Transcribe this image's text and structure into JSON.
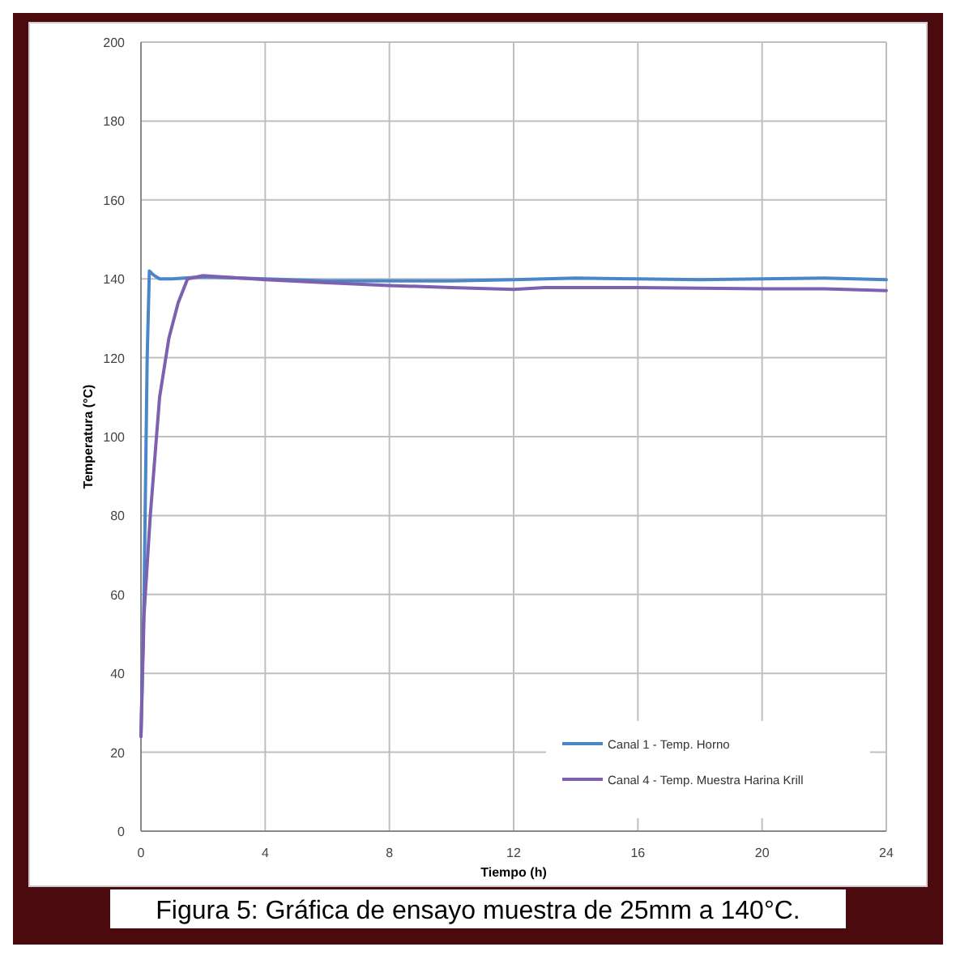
{
  "chart_data": {
    "type": "line",
    "xlabel": "Tiempo (h)",
    "ylabel": "Temperatura (°C)",
    "xlim": [
      0,
      24
    ],
    "xticks": [
      0,
      4,
      8,
      12,
      16,
      20,
      24
    ],
    "ylim": [
      0,
      200
    ],
    "yticks": [
      0,
      20,
      40,
      60,
      80,
      100,
      120,
      140,
      160,
      180,
      200
    ],
    "grid": true,
    "legend": "bottom right",
    "line_style": "solid",
    "annotations": [
      "Figura 5: Gráfica de ensayo muestra de 25mm a 140°C."
    ],
    "series": [
      {
        "name": "Canal 1 - Temp. Horno",
        "color": "#4a86c8",
        "x": [
          0,
          0.1,
          0.2,
          0.27,
          0.4,
          0.6,
          1,
          2,
          4,
          6,
          8,
          10,
          12,
          14,
          16,
          18,
          20,
          22,
          24
        ],
        "values": [
          24,
          60,
          120,
          142,
          141,
          140,
          140,
          140.5,
          140,
          139.5,
          139.5,
          139.5,
          139.8,
          140.2,
          140,
          139.8,
          140,
          140.2,
          139.8
        ]
      },
      {
        "name": "Canal 4 - Temp. Muestra Harina Krill",
        "color": "#7d60b0",
        "x": [
          0,
          0.1,
          0.3,
          0.6,
          0.9,
          1.2,
          1.5,
          2,
          3,
          4,
          6,
          8,
          10,
          12,
          13,
          16,
          20,
          22,
          24
        ],
        "values": [
          24,
          55,
          80,
          110,
          125,
          134,
          140,
          140.8,
          140.3,
          139.8,
          139,
          138.3,
          137.8,
          137.3,
          137.8,
          137.8,
          137.5,
          137.5,
          137
        ]
      }
    ]
  }
}
